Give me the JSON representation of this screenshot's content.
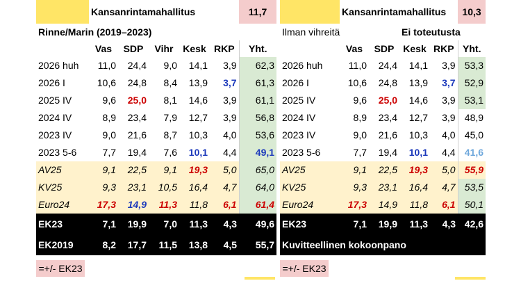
{
  "left": {
    "top_title": "Kansanrintamahallitus",
    "top_value": "11,7",
    "subtitle": "Rinne/Marin (2019–2023)",
    "headers": [
      "Vas",
      "SDP",
      "Vihr",
      "Kesk",
      "RKP",
      "Yht."
    ],
    "rows": [
      {
        "label": "2026 huh",
        "cells": [
          "11,0",
          "24,4",
          "9,0",
          "14,1",
          "3,9",
          "62,3"
        ]
      },
      {
        "label": "2026 I",
        "cells": [
          "10,6",
          "24,8",
          "8,4",
          "13,9",
          "3,7",
          "61,3"
        ]
      },
      {
        "label": "2025 IV",
        "cells": [
          "9,6",
          "25,0",
          "8,1",
          "14,6",
          "3,9",
          "61,1"
        ]
      },
      {
        "label": "2024 IV",
        "cells": [
          "8,9",
          "23,4",
          "7,9",
          "12,7",
          "3,9",
          "56,8"
        ]
      },
      {
        "label": "2023 IV",
        "cells": [
          "9,0",
          "21,6",
          "8,7",
          "10,3",
          "4,0",
          "53,6"
        ]
      },
      {
        "label": "2023 5-6",
        "cells": [
          "7,7",
          "19,4",
          "7,6",
          "10,1",
          "4,4",
          "49,1"
        ]
      }
    ],
    "italic_rows": [
      {
        "label": "AV25",
        "cells": [
          "9,1",
          "22,5",
          "9,1",
          "19,3",
          "5,0",
          "65,0"
        ]
      },
      {
        "label": "KV25",
        "cells": [
          "9,3",
          "23,1",
          "10,5",
          "16,4",
          "4,7",
          "64,0"
        ]
      },
      {
        "label": "Euro24",
        "cells": [
          "17,3",
          "14,9",
          "11,3",
          "11,8",
          "6,1",
          "61,4"
        ]
      }
    ],
    "black_rows": [
      {
        "label": "EK23",
        "cells": [
          "7,1",
          "19,9",
          "7,0",
          "11,3",
          "4,3",
          "49,6"
        ]
      },
      {
        "label": "EK2019",
        "cells": [
          "8,2",
          "17,7",
          "11,5",
          "13,8",
          "4,5",
          "55,7"
        ]
      }
    ],
    "footer": "=+/- EK23"
  },
  "right": {
    "top_title": "Kansanrintamahallitus",
    "top_value": "10,3",
    "subtitle_left": "Ilman vihreitä",
    "subtitle_right": "Ei toteutusta",
    "headers": [
      "Vas",
      "SDP",
      "Kesk",
      "RKP",
      "Yht."
    ],
    "rows": [
      {
        "label": "2026 huh",
        "cells": [
          "11,0",
          "24,4",
          "14,1",
          "3,9",
          "53,3"
        ]
      },
      {
        "label": "2026 I",
        "cells": [
          "10,6",
          "24,8",
          "13,9",
          "3,7",
          "52,9"
        ]
      },
      {
        "label": "2025 IV",
        "cells": [
          "9,6",
          "25,0",
          "14,6",
          "3,9",
          "53,1"
        ]
      },
      {
        "label": "2024 IV",
        "cells": [
          "8,9",
          "23,4",
          "12,7",
          "3,9",
          "48,9"
        ]
      },
      {
        "label": "2023 IV",
        "cells": [
          "9,0",
          "21,6",
          "10,3",
          "4,0",
          "45,0"
        ]
      },
      {
        "label": "2023 5-6",
        "cells": [
          "7,7",
          "19,4",
          "10,1",
          "4,4",
          "41,6"
        ]
      }
    ],
    "italic_rows": [
      {
        "label": "AV25",
        "cells": [
          "9,1",
          "22,5",
          "19,3",
          "5,0",
          "55,9"
        ]
      },
      {
        "label": "KV25",
        "cells": [
          "9,3",
          "23,1",
          "16,4",
          "4,7",
          "53,5"
        ]
      },
      {
        "label": "Euro24",
        "cells": [
          "17,3",
          "14,9",
          "11,8",
          "6,1",
          "50,1"
        ]
      }
    ],
    "black_rows": [
      {
        "label": "EK23",
        "cells": [
          "7,1",
          "19,9",
          "11,3",
          "4,3",
          "42,6"
        ]
      },
      {
        "label": "Kuvitteellinen kokoonpano"
      }
    ],
    "footer": "=+/- EK23"
  },
  "colors": {
    "yellow": "#ffe566",
    "pink": "#f4cccc",
    "green": "#d9ead3",
    "cream": "#fff2cc",
    "red": "#cc0000",
    "blue": "#1c39bb",
    "light_blue": "#6fa8dc"
  }
}
